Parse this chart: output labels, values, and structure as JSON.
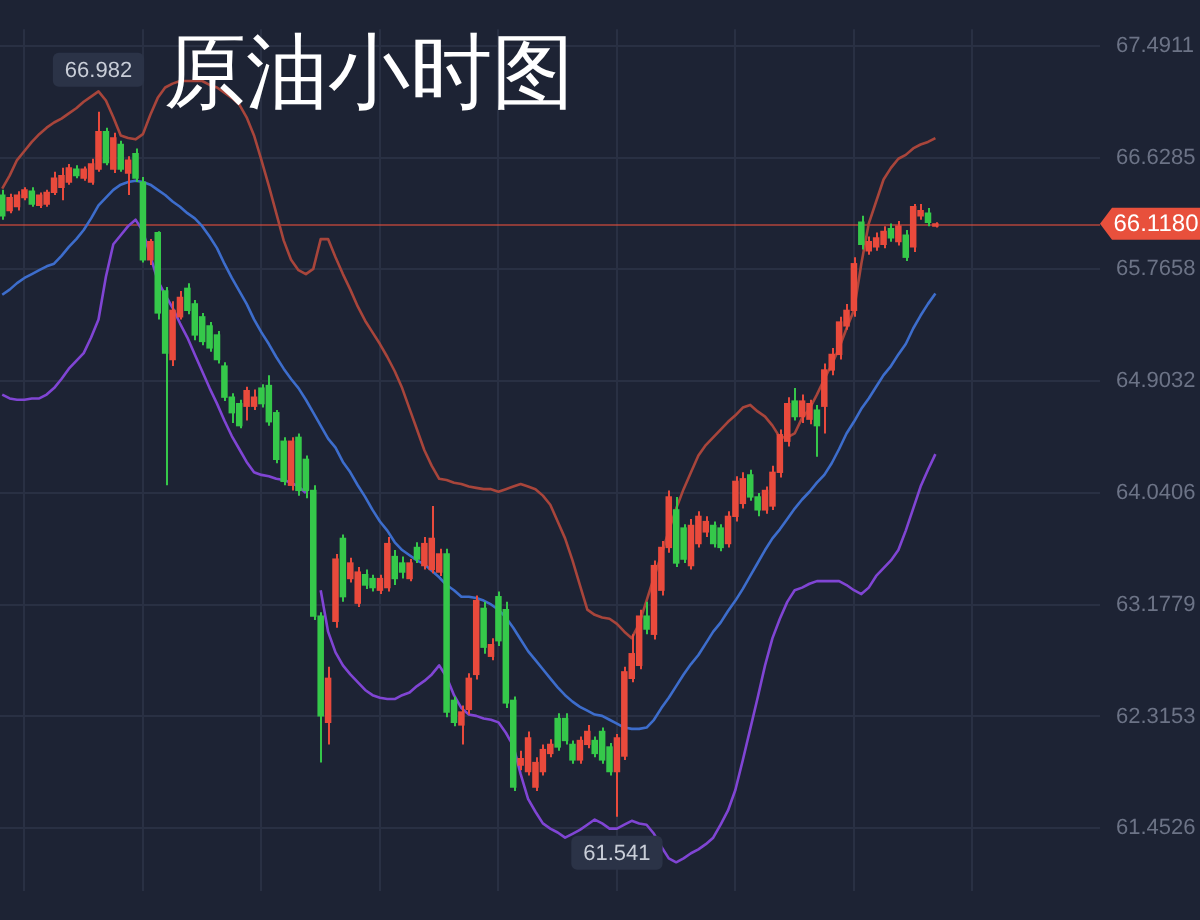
{
  "chart_data": {
    "type": "candlestick",
    "title": "原油小时图",
    "categories": [
      null,
      null,
      null,
      null,
      null,
      null,
      null,
      null,
      null,
      null,
      null,
      null,
      null,
      null,
      null,
      null,
      null,
      null,
      null,
      null,
      null,
      null,
      null,
      null,
      null,
      null,
      null,
      null,
      null,
      null,
      null,
      null,
      null,
      null,
      null,
      null,
      null,
      null,
      null,
      null,
      null,
      null,
      null,
      null,
      null,
      null,
      null,
      null,
      null,
      null,
      null,
      null,
      null,
      null,
      null,
      null,
      null,
      null,
      null,
      null,
      null,
      null,
      null,
      null,
      null,
      null,
      null,
      null,
      null,
      null,
      null,
      null,
      null,
      null,
      null,
      null,
      null,
      null,
      null,
      null,
      null,
      null,
      null,
      null,
      null,
      null,
      null,
      null,
      null,
      null,
      null,
      null,
      null,
      null,
      null,
      null,
      null,
      null,
      null,
      null,
      null,
      null,
      null,
      null,
      null,
      null,
      null,
      null,
      null,
      null,
      null,
      null,
      null,
      null,
      null,
      null,
      null,
      null,
      null,
      null,
      null,
      null,
      null,
      null,
      null,
      null,
      null
    ],
    "ohlc": [
      [
        66.34,
        66.38,
        66.15,
        66.18
      ],
      [
        66.22,
        66.35,
        66.2,
        66.32
      ],
      [
        66.25,
        66.37,
        66.22,
        66.34
      ],
      [
        66.32,
        66.4,
        66.3,
        66.38
      ],
      [
        66.37,
        66.4,
        66.25,
        66.27
      ],
      [
        66.26,
        66.36,
        66.24,
        66.34
      ],
      [
        66.27,
        66.38,
        66.25,
        66.36
      ],
      [
        66.36,
        66.52,
        66.34,
        66.47
      ],
      [
        66.4,
        66.55,
        66.3,
        66.49
      ],
      [
        66.44,
        66.58,
        66.42,
        66.55
      ],
      [
        66.54,
        66.57,
        66.47,
        66.49
      ],
      [
        66.47,
        66.56,
        66.45,
        66.54
      ],
      [
        66.44,
        66.62,
        66.42,
        66.58
      ],
      [
        66.54,
        66.982,
        66.52,
        66.83
      ],
      [
        66.83,
        66.86,
        66.57,
        66.59
      ],
      [
        66.54,
        66.82,
        66.51,
        66.78
      ],
      [
        66.73,
        66.76,
        66.52,
        66.54
      ],
      [
        66.51,
        66.64,
        66.34,
        66.61
      ],
      [
        66.66,
        66.7,
        66.44,
        66.47
      ],
      [
        66.44,
        66.48,
        65.82,
        65.84
      ],
      [
        65.84,
        66.0,
        65.8,
        65.98
      ],
      [
        66.05,
        66.06,
        65.38,
        65.43
      ],
      [
        65.6,
        65.63,
        64.1,
        65.12
      ],
      [
        65.07,
        65.52,
        65.02,
        65.45
      ],
      [
        65.4,
        65.6,
        65.38,
        65.55
      ],
      [
        65.62,
        65.66,
        65.42,
        65.45
      ],
      [
        65.5,
        65.53,
        65.22,
        65.26
      ],
      [
        65.4,
        65.43,
        65.18,
        65.21
      ],
      [
        65.33,
        65.36,
        65.13,
        65.16
      ],
      [
        65.26,
        65.29,
        65.04,
        65.07
      ],
      [
        65.02,
        65.05,
        64.75,
        64.78
      ],
      [
        64.78,
        64.81,
        64.58,
        64.66
      ],
      [
        64.73,
        64.76,
        64.54,
        64.56
      ],
      [
        64.71,
        64.86,
        64.6,
        64.83
      ],
      [
        64.71,
        64.84,
        64.68,
        64.78
      ],
      [
        64.85,
        64.88,
        64.7,
        64.73
      ],
      [
        64.87,
        64.95,
        64.56,
        64.59
      ],
      [
        64.66,
        64.68,
        64.27,
        64.3
      ],
      [
        64.44,
        64.47,
        64.1,
        64.13
      ],
      [
        64.1,
        64.47,
        64.06,
        64.44
      ],
      [
        64.47,
        64.5,
        64.02,
        64.06
      ],
      [
        64.3,
        64.33,
        64.0,
        64.06
      ],
      [
        64.06,
        64.1,
        63.06,
        63.09
      ],
      [
        63.09,
        63.12,
        61.96,
        62.32
      ],
      [
        62.27,
        62.7,
        62.1,
        62.61
      ],
      [
        63.05,
        63.57,
        63.0,
        63.53
      ],
      [
        63.69,
        63.72,
        63.2,
        63.24
      ],
      [
        63.38,
        63.54,
        63.35,
        63.5
      ],
      [
        63.19,
        63.47,
        63.16,
        63.43
      ],
      [
        63.41,
        63.45,
        63.3,
        63.33
      ],
      [
        63.38,
        63.41,
        63.28,
        63.31
      ],
      [
        63.29,
        63.41,
        63.26,
        63.38
      ],
      [
        63.31,
        63.7,
        63.28,
        63.65
      ],
      [
        63.55,
        63.6,
        63.33,
        63.38
      ],
      [
        63.5,
        63.55,
        63.38,
        63.43
      ],
      [
        63.38,
        63.53,
        63.36,
        63.5
      ],
      [
        63.62,
        63.66,
        63.5,
        63.53
      ],
      [
        63.48,
        63.7,
        63.45,
        63.65
      ],
      [
        63.45,
        63.94,
        63.42,
        63.69
      ],
      [
        63.43,
        63.61,
        63.4,
        63.57
      ],
      [
        63.57,
        63.61,
        62.31,
        62.35
      ],
      [
        62.44,
        62.47,
        62.24,
        62.27
      ],
      [
        62.25,
        62.4,
        62.1,
        62.35
      ],
      [
        62.37,
        62.65,
        62.33,
        62.61
      ],
      [
        62.64,
        63.25,
        62.6,
        63.21
      ],
      [
        63.15,
        63.2,
        62.8,
        62.85
      ],
      [
        62.78,
        62.92,
        62.75,
        62.87
      ],
      [
        63.24,
        63.28,
        62.86,
        62.9
      ],
      [
        63.14,
        63.2,
        62.38,
        62.42
      ],
      [
        62.44,
        62.47,
        61.74,
        61.77
      ],
      [
        61.94,
        62.05,
        61.9,
        61.99
      ],
      [
        61.89,
        62.2,
        61.86,
        62.15
      ],
      [
        61.77,
        62.0,
        61.74,
        61.96
      ],
      [
        61.89,
        62.1,
        61.86,
        62.06
      ],
      [
        62.03,
        62.14,
        62.0,
        62.1
      ],
      [
        62.3,
        62.34,
        62.05,
        62.08
      ],
      [
        62.3,
        62.34,
        62.1,
        62.13
      ],
      [
        62.1,
        62.13,
        61.95,
        61.98
      ],
      [
        61.98,
        62.16,
        61.95,
        62.13
      ],
      [
        62.1,
        62.25,
        62.07,
        62.2
      ],
      [
        62.13,
        62.16,
        62.0,
        62.03
      ],
      [
        62.2,
        62.23,
        61.95,
        61.98
      ],
      [
        62.08,
        62.11,
        61.86,
        61.89
      ],
      [
        61.89,
        62.18,
        61.541,
        62.15
      ],
      [
        62.01,
        62.7,
        61.98,
        62.66
      ],
      [
        62.61,
        62.95,
        62.58,
        62.8
      ],
      [
        62.71,
        63.14,
        62.68,
        63.09
      ],
      [
        63.09,
        63.2,
        62.95,
        62.99
      ],
      [
        62.95,
        63.52,
        62.91,
        63.48
      ],
      [
        63.29,
        63.67,
        63.25,
        63.62
      ],
      [
        63.62,
        64.06,
        63.58,
        64.01
      ],
      [
        63.91,
        64.01,
        63.47,
        63.5
      ],
      [
        63.77,
        63.8,
        63.5,
        63.53
      ],
      [
        63.48,
        63.84,
        63.45,
        63.79
      ],
      [
        63.65,
        63.9,
        63.62,
        63.86
      ],
      [
        63.74,
        63.86,
        63.7,
        63.82
      ],
      [
        63.79,
        63.82,
        63.62,
        63.65
      ],
      [
        63.77,
        63.8,
        63.59,
        63.62
      ],
      [
        63.65,
        63.9,
        63.62,
        63.86
      ],
      [
        63.86,
        64.17,
        63.82,
        64.13
      ],
      [
        63.96,
        64.2,
        63.92,
        64.15
      ],
      [
        64.18,
        64.22,
        63.98,
        64.01
      ],
      [
        64.01,
        64.04,
        63.86,
        63.91
      ],
      [
        63.91,
        64.09,
        63.88,
        64.06
      ],
      [
        63.94,
        64.25,
        63.91,
        64.2
      ],
      [
        64.2,
        64.53,
        64.16,
        64.49
      ],
      [
        64.44,
        64.78,
        64.4,
        64.73
      ],
      [
        64.75,
        64.85,
        64.6,
        64.63
      ],
      [
        64.63,
        64.8,
        64.58,
        64.75
      ],
      [
        64.61,
        64.76,
        64.57,
        64.73
      ],
      [
        64.68,
        64.72,
        64.32,
        64.56
      ],
      [
        64.71,
        65.04,
        64.5,
        64.99
      ],
      [
        64.99,
        65.16,
        64.95,
        65.11
      ],
      [
        65.11,
        65.4,
        65.07,
        65.36
      ],
      [
        65.33,
        65.5,
        65.3,
        65.45
      ],
      [
        65.45,
        65.86,
        65.4,
        65.81
      ],
      [
        66.13,
        66.18,
        65.92,
        65.96
      ],
      [
        65.91,
        66.02,
        65.88,
        65.98
      ],
      [
        65.94,
        66.05,
        65.91,
        66.01
      ],
      [
        65.96,
        66.1,
        65.93,
        66.06
      ],
      [
        66.08,
        66.12,
        65.98,
        66.01
      ],
      [
        65.98,
        66.14,
        65.95,
        66.1
      ],
      [
        66.03,
        66.07,
        65.83,
        65.86
      ],
      [
        65.94,
        66.27,
        65.9,
        66.25
      ],
      [
        66.18,
        66.27,
        66.15,
        66.22
      ],
      [
        66.2,
        66.24,
        66.1,
        66.13
      ],
      [
        66.1,
        66.13,
        66.09,
        66.118
      ]
    ],
    "colors": [
      "#35c84a",
      "#e94a3c",
      "#e94a3c",
      "#e94a3c",
      "#35c84a",
      "#e94a3c",
      "#e94a3c",
      "#e94a3c",
      "#e94a3c",
      "#e94a3c",
      "#35c84a",
      "#e94a3c",
      "#e94a3c",
      "#e94a3c",
      "#35c84a",
      "#e94a3c",
      "#35c84a",
      "#e94a3c",
      "#35c84a",
      "#35c84a",
      "#e94a3c",
      "#35c84a",
      "#35c84a",
      "#e94a3c",
      "#e94a3c",
      "#35c84a",
      "#35c84a",
      "#35c84a",
      "#35c84a",
      "#35c84a",
      "#35c84a",
      "#35c84a",
      "#35c84a",
      "#e94a3c",
      "#e94a3c",
      "#35c84a",
      "#35c84a",
      "#35c84a",
      "#35c84a",
      "#e94a3c",
      "#35c84a",
      "#35c84a",
      "#35c84a",
      "#35c84a",
      "#e94a3c",
      "#e94a3c",
      "#35c84a",
      "#e94a3c",
      "#e94a3c",
      "#35c84a",
      "#35c84a",
      "#e94a3c",
      "#e94a3c",
      "#35c84a",
      "#35c84a",
      "#e94a3c",
      "#35c84a",
      "#e94a3c",
      "#e94a3c",
      "#e94a3c",
      "#35c84a",
      "#35c84a",
      "#e94a3c",
      "#e94a3c",
      "#e94a3c",
      "#35c84a",
      "#e94a3c",
      "#35c84a",
      "#35c84a",
      "#35c84a",
      "#e94a3c",
      "#e94a3c",
      "#e94a3c",
      "#e94a3c",
      "#e94a3c",
      "#35c84a",
      "#35c84a",
      "#35c84a",
      "#e94a3c",
      "#e94a3c",
      "#35c84a",
      "#35c84a",
      "#35c84a",
      "#e94a3c",
      "#e94a3c",
      "#e94a3c",
      "#e94a3c",
      "#35c84a",
      "#e94a3c",
      "#e94a3c",
      "#e94a3c",
      "#35c84a",
      "#35c84a",
      "#e94a3c",
      "#e94a3c",
      "#e94a3c",
      "#35c84a",
      "#35c84a",
      "#e94a3c",
      "#e94a3c",
      "#e94a3c",
      "#35c84a",
      "#35c84a",
      "#e94a3c",
      "#e94a3c",
      "#e94a3c",
      "#e94a3c",
      "#35c84a",
      "#e94a3c",
      "#e94a3c",
      "#35c84a",
      "#e94a3c",
      "#e94a3c",
      "#e94a3c",
      "#e94a3c",
      "#e94a3c",
      "#35c84a",
      "#e94a3c",
      "#e94a3c",
      "#e94a3c",
      "#35c84a",
      "#e94a3c",
      "#35c84a",
      "#e94a3c",
      "#e94a3c",
      "#35c84a",
      "#e94a3c"
    ],
    "series": [
      {
        "type": "line",
        "color": "#a8453b",
        "values": [
          66.39,
          66.49,
          66.61,
          66.68,
          66.75,
          66.81,
          66.86,
          66.9,
          66.93,
          66.97,
          67.01,
          67.06,
          67.1,
          67.14,
          67.07,
          66.94,
          66.8,
          66.78,
          66.77,
          66.81,
          66.96,
          67.09,
          67.17,
          67.2,
          67.22,
          67.22,
          67.22,
          67.22,
          67.19,
          67.17,
          67.13,
          67.09,
          67.04,
          66.94,
          66.8,
          66.61,
          66.41,
          66.2,
          65.99,
          65.84,
          65.76,
          65.73,
          65.77,
          66.0,
          66.0,
          65.86,
          65.73,
          65.61,
          65.48,
          65.37,
          65.28,
          65.19,
          65.09,
          64.98,
          64.85,
          64.69,
          64.53,
          64.37,
          64.25,
          64.15,
          64.14,
          64.12,
          64.11,
          64.09,
          64.08,
          64.07,
          64.07,
          64.05,
          64.07,
          64.09,
          64.11,
          64.09,
          64.07,
          64.02,
          63.95,
          63.82,
          63.69,
          63.52,
          63.33,
          63.14,
          63.1,
          63.08,
          63.07,
          63.03,
          62.97,
          62.92,
          63.03,
          63.21,
          63.39,
          63.56,
          63.75,
          63.92,
          64.07,
          64.2,
          64.33,
          64.41,
          64.47,
          64.53,
          64.59,
          64.64,
          64.7,
          64.72,
          64.67,
          64.63,
          64.56,
          64.47,
          64.47,
          64.5,
          64.62,
          64.69,
          64.8,
          64.92,
          65.03,
          65.16,
          65.31,
          65.45,
          65.81,
          66.12,
          66.29,
          66.46,
          66.55,
          66.62,
          66.65,
          66.7,
          66.73,
          66.75,
          66.78
        ]
      },
      {
        "type": "line",
        "color": "#3d6dcc",
        "values": [
          65.57,
          65.61,
          65.66,
          65.7,
          65.73,
          65.76,
          65.79,
          65.81,
          65.87,
          65.94,
          66.0,
          66.07,
          66.16,
          66.26,
          66.32,
          66.38,
          66.42,
          66.44,
          66.45,
          66.44,
          66.42,
          66.38,
          66.34,
          66.29,
          66.25,
          66.2,
          66.16,
          66.1,
          66.02,
          65.93,
          65.81,
          65.7,
          65.6,
          65.5,
          65.38,
          65.28,
          65.19,
          65.09,
          65.0,
          64.92,
          64.85,
          64.76,
          64.66,
          64.56,
          64.46,
          64.39,
          64.28,
          64.2,
          64.1,
          64.01,
          63.91,
          63.82,
          63.75,
          63.66,
          63.6,
          63.56,
          63.52,
          63.49,
          63.44,
          63.39,
          63.33,
          63.29,
          63.24,
          63.24,
          63.23,
          63.21,
          63.18,
          63.14,
          63.08,
          63.0,
          62.91,
          62.82,
          62.75,
          62.68,
          62.61,
          62.54,
          62.48,
          62.43,
          62.39,
          62.36,
          62.33,
          62.32,
          62.29,
          62.26,
          62.23,
          62.22,
          62.22,
          62.23,
          62.29,
          62.38,
          62.46,
          62.55,
          62.64,
          62.72,
          62.79,
          62.88,
          62.97,
          63.04,
          63.13,
          63.21,
          63.3,
          63.4,
          63.5,
          63.6,
          63.69,
          63.76,
          63.84,
          63.92,
          63.99,
          64.05,
          64.12,
          64.18,
          64.27,
          64.38,
          64.5,
          64.59,
          64.69,
          64.77,
          64.86,
          64.95,
          65.02,
          65.11,
          65.19,
          65.31,
          65.41,
          65.5,
          65.58
        ]
      },
      {
        "type": "line",
        "color": "#8045d4",
        "values": [
          64.8,
          64.77,
          64.76,
          64.76,
          64.77,
          64.77,
          64.8,
          64.85,
          64.92,
          65.0,
          65.06,
          65.12,
          65.24,
          65.38,
          65.71,
          65.96,
          66.03,
          66.1,
          66.15,
          66.06,
          65.87,
          65.68,
          65.57,
          65.47,
          65.35,
          65.24,
          65.11,
          64.98,
          64.85,
          64.73,
          64.6,
          64.48,
          64.38,
          64.28,
          64.2,
          64.18,
          64.17,
          64.15,
          64.14,
          64.12,
          64.09,
          64.04,
          null,
          63.29,
          62.97,
          62.81,
          62.71,
          62.64,
          62.58,
          62.52,
          62.48,
          62.46,
          62.45,
          62.45,
          62.48,
          62.5,
          62.55,
          62.59,
          62.64,
          62.71,
          62.62,
          62.48,
          62.38,
          62.33,
          62.32,
          62.3,
          62.29,
          62.27,
          62.19,
          62.09,
          61.87,
          61.68,
          61.58,
          61.49,
          61.45,
          61.42,
          61.38,
          61.41,
          61.44,
          61.48,
          61.52,
          61.49,
          61.45,
          61.45,
          61.48,
          61.51,
          61.49,
          61.48,
          61.41,
          61.31,
          61.22,
          61.19,
          61.22,
          61.26,
          61.29,
          61.33,
          61.38,
          61.48,
          61.59,
          61.75,
          61.98,
          62.22,
          62.46,
          62.71,
          62.92,
          63.07,
          63.2,
          63.29,
          63.31,
          63.34,
          63.36,
          63.36,
          63.36,
          63.36,
          63.33,
          63.29,
          63.26,
          63.31,
          63.4,
          63.46,
          63.52,
          63.6,
          63.75,
          63.92,
          64.09,
          64.22,
          64.34
        ]
      }
    ],
    "ylim": [
      60.97,
      67.62
    ],
    "yticks": [
      61.4526,
      62.3153,
      63.1779,
      64.0406,
      64.9032,
      65.7658,
      66.6285,
      67.4911
    ],
    "grid": true,
    "tick_labels": "y",
    "marker": "none",
    "ref_lines": [
      {
        "axis": "y",
        "value": 66.118,
        "label": "66.1180",
        "color": "#e8503c"
      }
    ],
    "annotations": [
      {
        "text": "66.982",
        "y": 66.982
      },
      {
        "text": "61.541",
        "y": 61.541
      }
    ]
  }
}
